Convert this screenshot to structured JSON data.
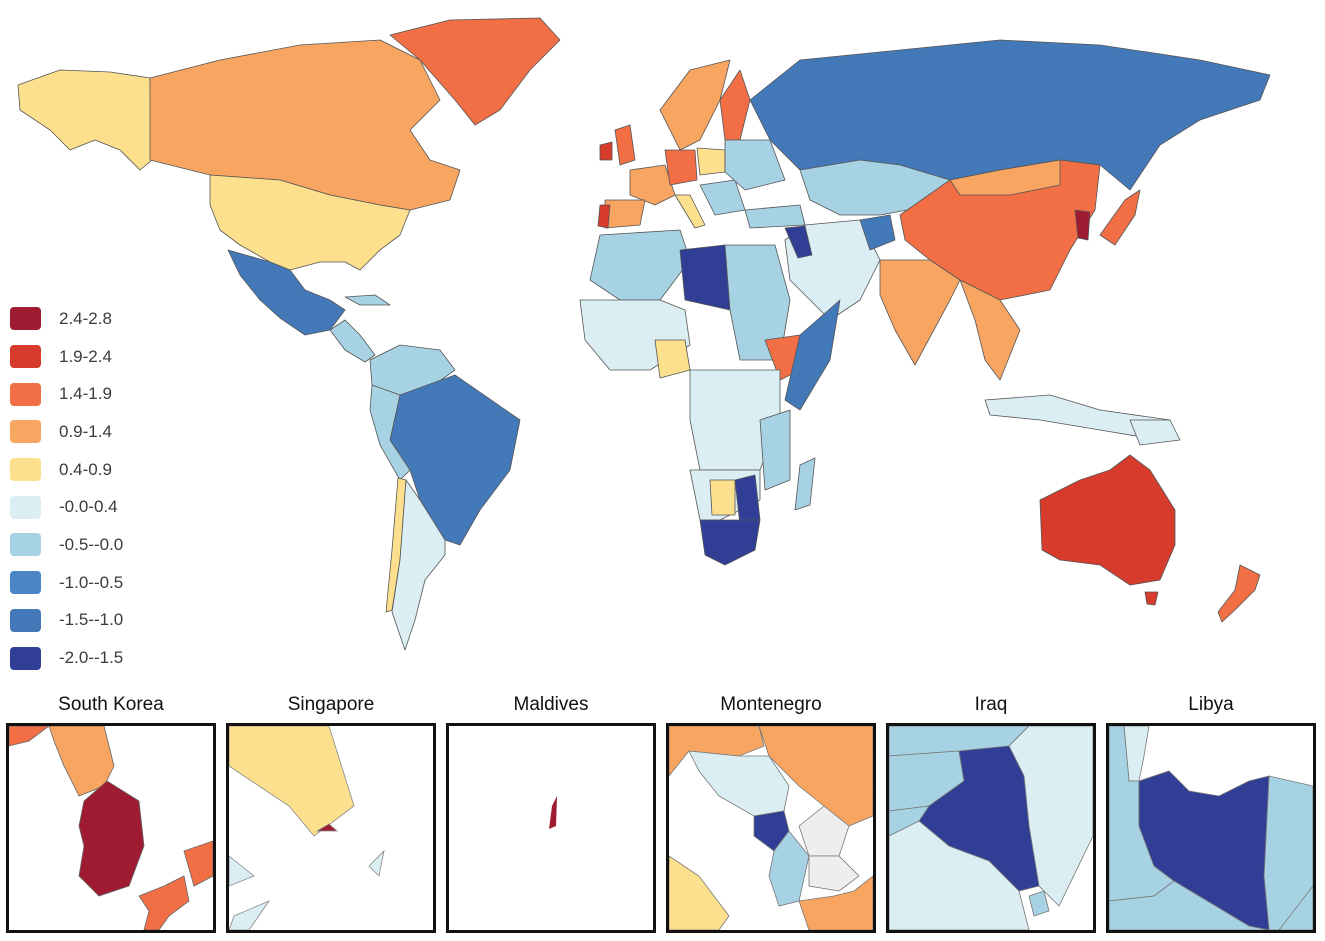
{
  "legend": {
    "items": [
      {
        "label": "2.4-2.8",
        "color": "#9e1b32"
      },
      {
        "label": "1.9-2.4",
        "color": "#d73b2b"
      },
      {
        "label": "1.4-1.9",
        "color": "#f26f46"
      },
      {
        "label": "0.9-1.4",
        "color": "#f9a562"
      },
      {
        "label": "0.4-0.9",
        "color": "#fde08e"
      },
      {
        "label": "-0.0-0.4",
        "color": "#dbeef4"
      },
      {
        "label": "-0.5--0.0",
        "color": "#a6d2e3"
      },
      {
        "label": "-1.0--0.5",
        "color": "#4a86c6"
      },
      {
        "label": "-1.5--1.0",
        "color": "#4479b9"
      },
      {
        "label": "-2.0--1.5",
        "color": "#303f95"
      }
    ]
  },
  "insets": [
    {
      "title": "South Korea"
    },
    {
      "title": "Singapore"
    },
    {
      "title": "Maldives"
    },
    {
      "title": "Montenegro"
    },
    {
      "title": "Iraq"
    },
    {
      "title": "Libya"
    }
  ],
  "colors": {
    "c_28": "#9e1b32",
    "c_24": "#d73b2b",
    "c_19": "#f26f46",
    "c_14": "#f9a562",
    "c_09": "#fde08e",
    "c_04": "#dbeef4",
    "c_00": "#a6d2e3",
    "c_m05": "#4a86c6",
    "c_m10": "#4479b9",
    "c_m15": "#303f95",
    "nodata": "#eeeeee",
    "stroke": "#444444"
  }
}
